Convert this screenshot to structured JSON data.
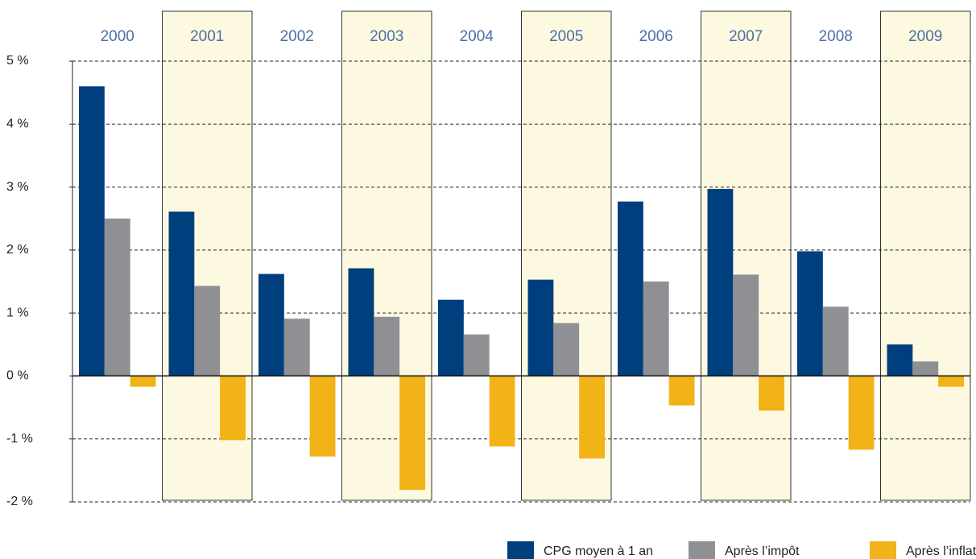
{
  "chart_data": {
    "type": "bar",
    "categories": [
      "2000",
      "2001",
      "2002",
      "2003",
      "2004",
      "2005",
      "2006",
      "2007",
      "2008",
      "2009"
    ],
    "series": [
      {
        "name": "CPG moyen à 1 an",
        "color": "#003f7d",
        "values": [
          4.6,
          2.61,
          1.62,
          1.71,
          1.21,
          1.53,
          2.77,
          2.97,
          1.98,
          0.5
        ]
      },
      {
        "name": "Après l’impôt",
        "color": "#8e9094",
        "values": [
          2.5,
          1.43,
          0.91,
          0.94,
          0.66,
          0.84,
          1.5,
          1.61,
          1.1,
          0.23
        ]
      },
      {
        "name": "Après l’inflation",
        "color": "#f2b318",
        "values": [
          -0.17,
          -1.02,
          -1.28,
          -1.81,
          -1.12,
          -1.31,
          -0.47,
          -0.55,
          -1.17,
          -0.17
        ]
      }
    ],
    "ylim": [
      -2,
      5
    ],
    "yticks": [
      {
        "value": -2,
        "label": "-2 %"
      },
      {
        "value": -1,
        "label": "-1 %"
      },
      {
        "value": 0,
        "label": "0 %"
      },
      {
        "value": 1,
        "label": "1 %"
      },
      {
        "value": 2,
        "label": "2 %"
      },
      {
        "value": 3,
        "label": "3 %"
      },
      {
        "value": 4,
        "label": "4 %"
      },
      {
        "value": 5,
        "label": "5 %"
      }
    ],
    "grid": true
  }
}
